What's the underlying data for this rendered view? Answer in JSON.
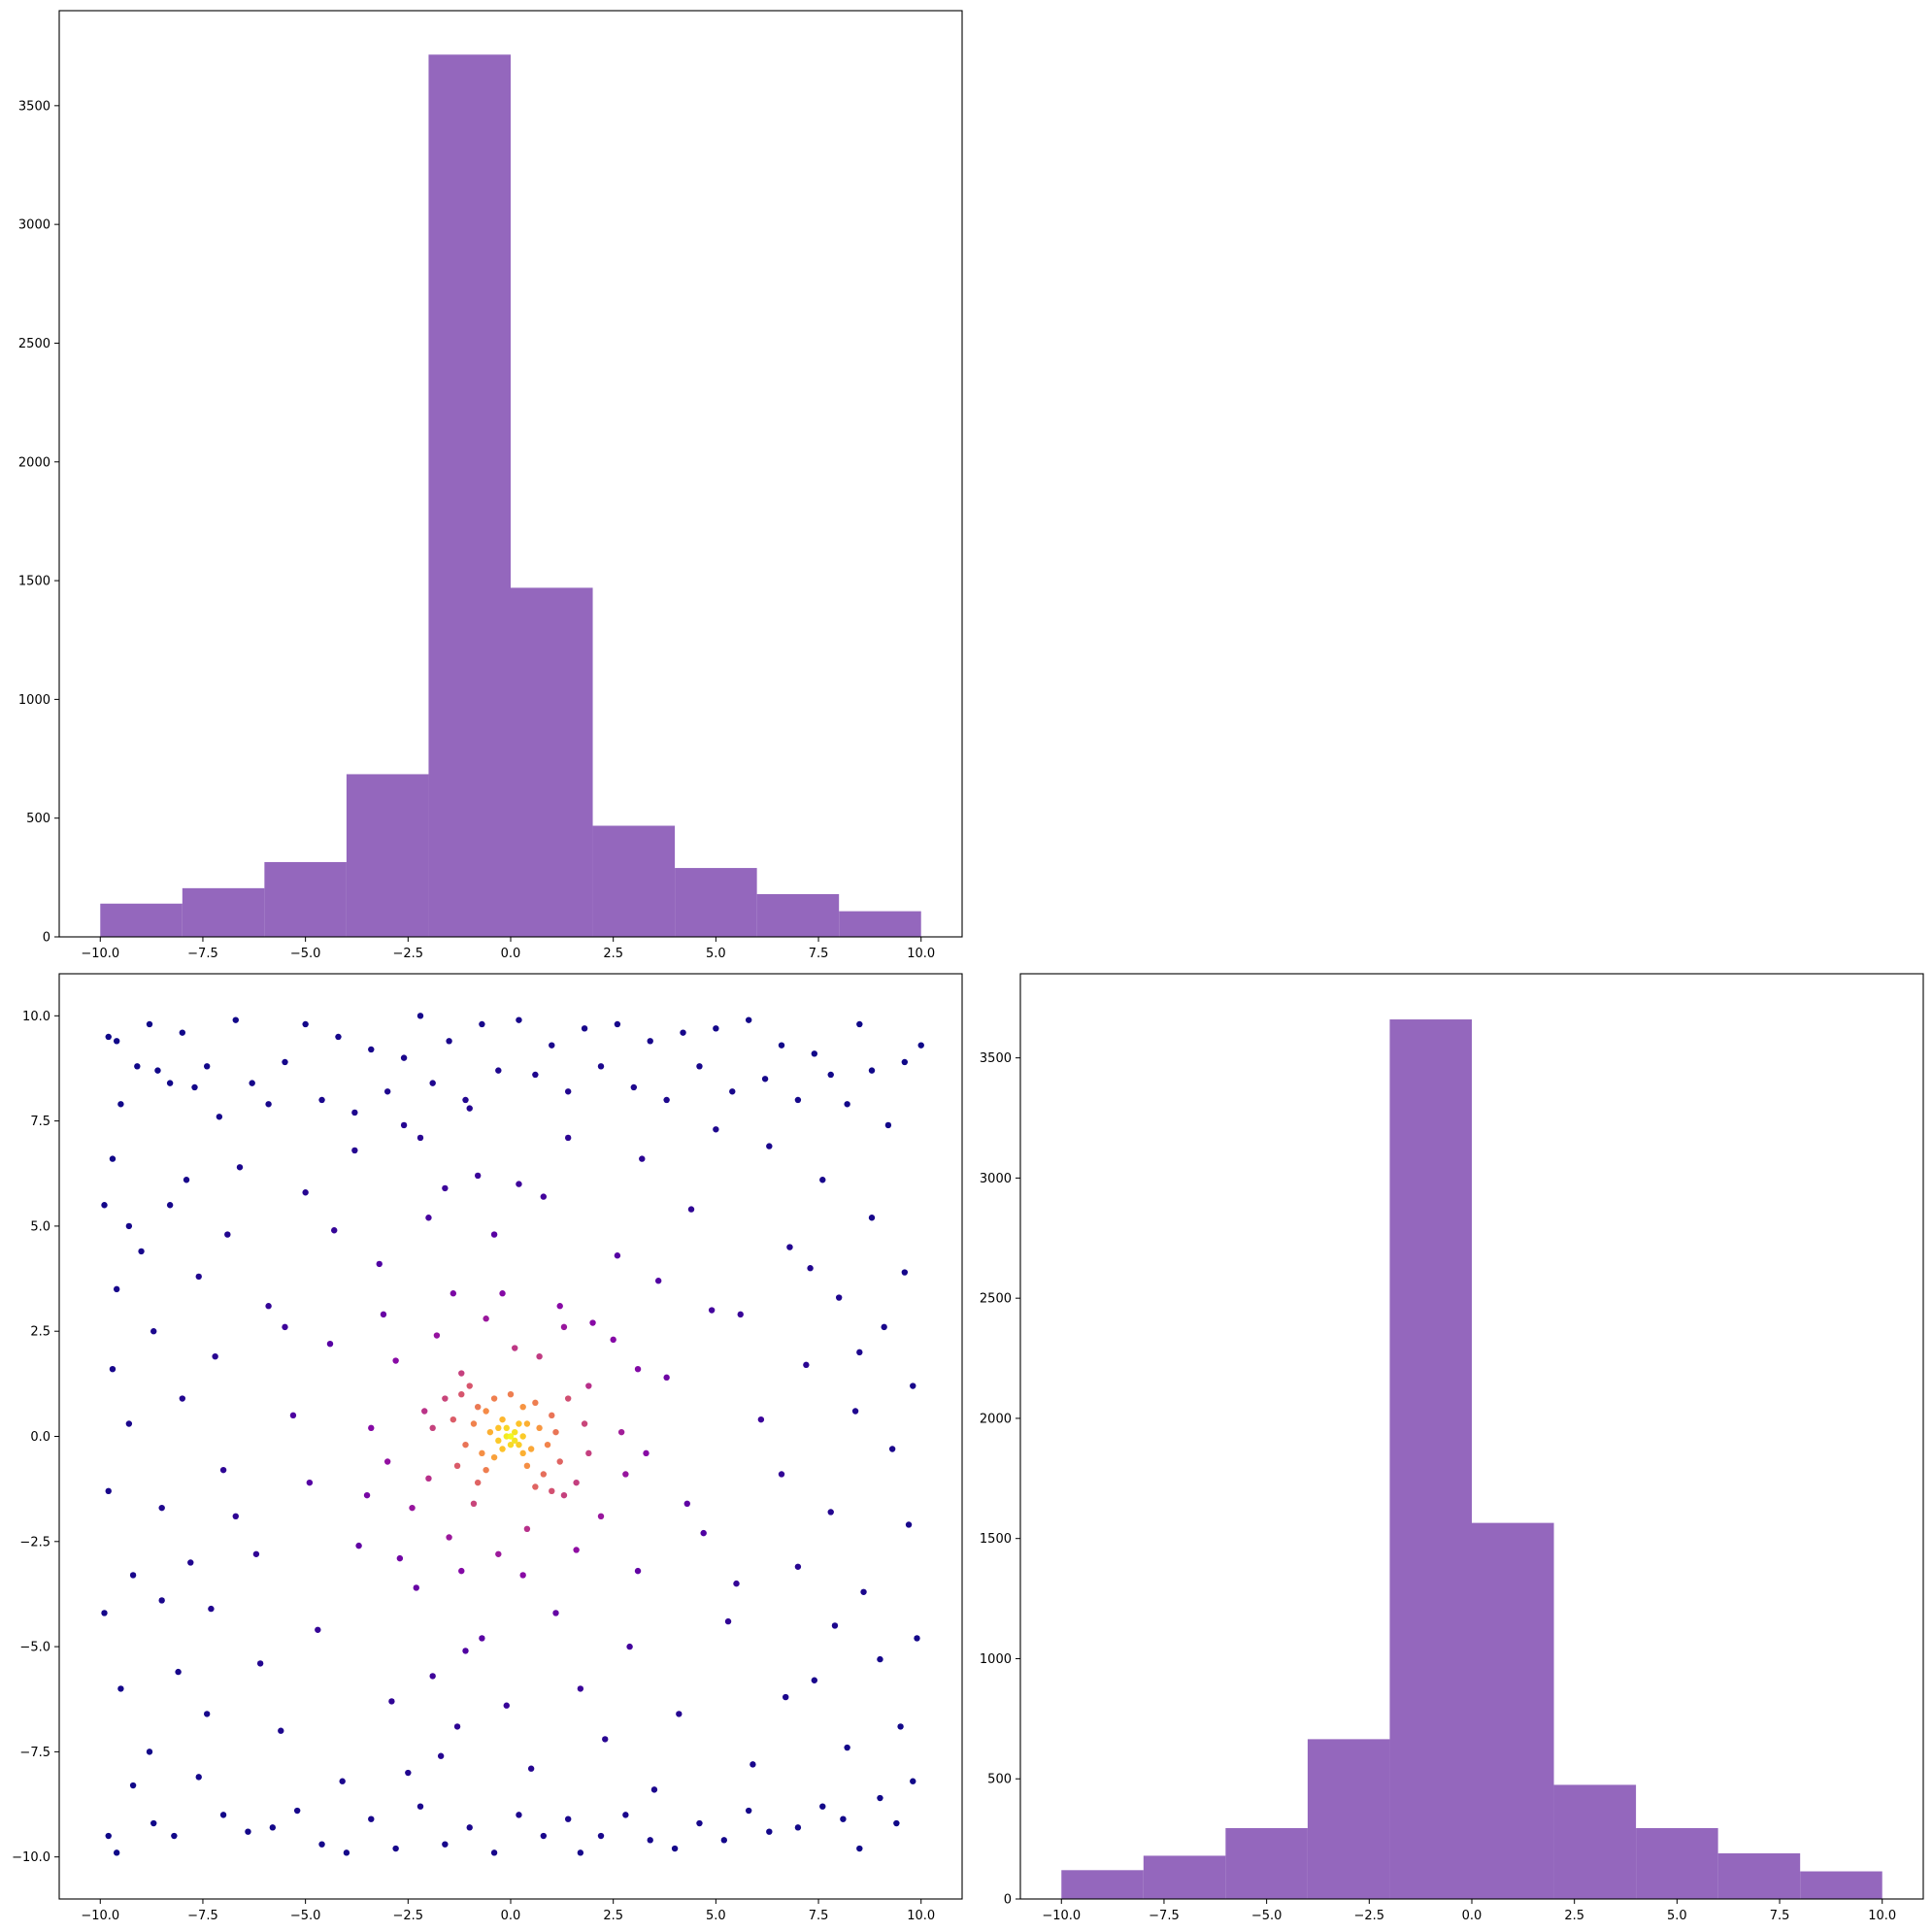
{
  "figure": {
    "background": "#ffffff",
    "bar_color": "#9467bd",
    "colormap": "plasma"
  },
  "chart_data": [
    {
      "type": "bar",
      "panel": "top-left",
      "bin_edges": [
        -10,
        -8,
        -6,
        -4,
        -2,
        0,
        2,
        4,
        6,
        8,
        10
      ],
      "values": [
        140,
        205,
        315,
        685,
        3715,
        1470,
        468,
        290,
        180,
        108
      ],
      "xlim": [
        -11,
        11
      ],
      "ylim": [
        0,
        3900
      ],
      "xticks": [
        -10.0,
        -7.5,
        -5.0,
        -2.5,
        0.0,
        2.5,
        5.0,
        7.5,
        10.0
      ],
      "xtick_labels": [
        "−10.0",
        "−7.5",
        "−5.0",
        "−2.5",
        "0.0",
        "2.5",
        "5.0",
        "7.5",
        "10.0"
      ],
      "yticks": [
        0,
        500,
        1000,
        1500,
        2000,
        2500,
        3000,
        3500
      ],
      "ytick_labels": [
        "0",
        "500",
        "1000",
        "1500",
        "2000",
        "2500",
        "3000",
        "3500"
      ],
      "color": "#9467bd",
      "grid": false
    },
    {
      "type": "scatter",
      "panel": "bottom-left",
      "xlim": [
        -11,
        11
      ],
      "ylim": [
        -11,
        11
      ],
      "xticks": [
        -10.0,
        -7.5,
        -5.0,
        -2.5,
        0.0,
        2.5,
        5.0,
        7.5,
        10.0
      ],
      "xtick_labels": [
        "−10.0",
        "−7.5",
        "−5.0",
        "−2.5",
        "0.0",
        "2.5",
        "5.0",
        "7.5",
        "10.0"
      ],
      "yticks": [
        -10.0,
        -7.5,
        -5.0,
        -2.5,
        0.0,
        2.5,
        5.0,
        7.5,
        10.0
      ],
      "ytick_labels": [
        "−10.0",
        "−7.5",
        "−5.0",
        "−2.5",
        "0.0",
        "2.5",
        "5.0",
        "7.5",
        "10.0"
      ],
      "point_color_scale": "plasma, by local point density (dark purple = sparse, yellow = dense)",
      "points": [
        [
          -9.9,
          5.5
        ],
        [
          -9.8,
          9.5
        ],
        [
          -9.7,
          6.6
        ],
        [
          -9.6,
          9.4
        ],
        [
          -9.5,
          7.9
        ],
        [
          -9.3,
          5.0
        ],
        [
          -9.1,
          8.8
        ],
        [
          -8.8,
          9.8
        ],
        [
          -8.6,
          8.7
        ],
        [
          -8.3,
          8.4
        ],
        [
          -8.0,
          9.6
        ],
        [
          -7.7,
          8.3
        ],
        [
          -7.4,
          8.8
        ],
        [
          -7.1,
          7.6
        ],
        [
          -6.7,
          9.9
        ],
        [
          -6.3,
          8.4
        ],
        [
          -5.9,
          7.9
        ],
        [
          -5.5,
          8.9
        ],
        [
          -5.0,
          9.8
        ],
        [
          -4.6,
          8.0
        ],
        [
          -4.2,
          9.5
        ],
        [
          -3.8,
          7.7
        ],
        [
          -3.4,
          9.2
        ],
        [
          -3.0,
          8.2
        ],
        [
          -2.6,
          9.0
        ],
        [
          -2.2,
          10.0
        ],
        [
          -1.9,
          8.4
        ],
        [
          -1.5,
          9.4
        ],
        [
          -1.1,
          8.0
        ],
        [
          -0.7,
          9.8
        ],
        [
          -0.3,
          8.7
        ],
        [
          0.2,
          9.9
        ],
        [
          0.6,
          8.6
        ],
        [
          1.0,
          9.3
        ],
        [
          1.4,
          8.2
        ],
        [
          1.8,
          9.7
        ],
        [
          2.2,
          8.8
        ],
        [
          2.6,
          9.8
        ],
        [
          3.0,
          8.3
        ],
        [
          3.4,
          9.4
        ],
        [
          3.8,
          8.0
        ],
        [
          4.2,
          9.6
        ],
        [
          4.6,
          8.8
        ],
        [
          5.0,
          9.7
        ],
        [
          5.4,
          8.2
        ],
        [
          5.8,
          9.9
        ],
        [
          6.2,
          8.5
        ],
        [
          6.6,
          9.3
        ],
        [
          7.0,
          8.0
        ],
        [
          7.4,
          9.1
        ],
        [
          7.8,
          8.6
        ],
        [
          8.2,
          7.9
        ],
        [
          8.5,
          9.8
        ],
        [
          8.8,
          8.7
        ],
        [
          9.2,
          7.4
        ],
        [
          9.6,
          8.9
        ],
        [
          10.0,
          9.3
        ],
        [
          -9.8,
          -9.5
        ],
        [
          -9.6,
          -9.9
        ],
        [
          -9.2,
          -8.3
        ],
        [
          -8.7,
          -9.2
        ],
        [
          -8.2,
          -9.5
        ],
        [
          -7.6,
          -8.1
        ],
        [
          -7.0,
          -9.0
        ],
        [
          -6.4,
          -9.4
        ],
        [
          -5.8,
          -9.3
        ],
        [
          -5.2,
          -8.9
        ],
        [
          -4.6,
          -9.7
        ],
        [
          -4.0,
          -9.9
        ],
        [
          -3.4,
          -9.1
        ],
        [
          -2.8,
          -9.8
        ],
        [
          -2.2,
          -8.8
        ],
        [
          -1.6,
          -9.7
        ],
        [
          -1.0,
          -9.3
        ],
        [
          -0.4,
          -9.9
        ],
        [
          0.2,
          -9.0
        ],
        [
          0.8,
          -9.5
        ],
        [
          1.4,
          -9.1
        ],
        [
          1.7,
          -9.9
        ],
        [
          2.2,
          -9.5
        ],
        [
          2.8,
          -9.0
        ],
        [
          3.4,
          -9.6
        ],
        [
          4.0,
          -9.8
        ],
        [
          4.6,
          -9.2
        ],
        [
          5.2,
          -9.6
        ],
        [
          5.8,
          -8.9
        ],
        [
          6.3,
          -9.4
        ],
        [
          7.0,
          -9.3
        ],
        [
          7.6,
          -8.8
        ],
        [
          8.1,
          -9.1
        ],
        [
          8.5,
          -9.8
        ],
        [
          9.0,
          -8.6
        ],
        [
          9.4,
          -9.2
        ],
        [
          9.8,
          -8.2
        ],
        [
          -9.9,
          -4.2
        ],
        [
          -9.8,
          -1.3
        ],
        [
          -9.7,
          1.6
        ],
        [
          -9.6,
          3.5
        ],
        [
          -9.5,
          -6.0
        ],
        [
          -9.3,
          0.3
        ],
        [
          -9.2,
          -3.3
        ],
        [
          -9.0,
          4.4
        ],
        [
          -8.8,
          -7.5
        ],
        [
          -8.7,
          2.5
        ],
        [
          -8.5,
          -1.7
        ],
        [
          -8.3,
          5.5
        ],
        [
          -8.1,
          -5.6
        ],
        [
          -8.0,
          0.9
        ],
        [
          -7.8,
          -3.0
        ],
        [
          -7.6,
          3.8
        ],
        [
          -7.4,
          -6.6
        ],
        [
          -7.2,
          1.9
        ],
        [
          -7.0,
          -0.8
        ],
        [
          -6.9,
          4.8
        ],
        [
          9.9,
          -4.8
        ],
        [
          9.8,
          1.2
        ],
        [
          9.7,
          -2.1
        ],
        [
          9.6,
          3.9
        ],
        [
          9.5,
          -6.9
        ],
        [
          9.3,
          -0.3
        ],
        [
          9.1,
          2.6
        ],
        [
          9.0,
          -5.3
        ],
        [
          8.8,
          5.2
        ],
        [
          8.6,
          -3.7
        ],
        [
          8.4,
          0.6
        ],
        [
          8.2,
          -7.4
        ],
        [
          8.0,
          3.3
        ],
        [
          7.8,
          -1.8
        ],
        [
          7.6,
          6.1
        ],
        [
          7.4,
          -5.8
        ],
        [
          7.2,
          1.7
        ],
        [
          7.0,
          -3.1
        ],
        [
          6.8,
          4.5
        ],
        [
          6.6,
          -0.9
        ],
        [
          -6.6,
          6.4
        ],
        [
          -6.2,
          -2.8
        ],
        [
          -5.9,
          3.1
        ],
        [
          -5.6,
          -7.0
        ],
        [
          -5.3,
          0.5
        ],
        [
          -5.0,
          5.8
        ],
        [
          -4.7,
          -4.6
        ],
        [
          -4.4,
          2.2
        ],
        [
          -4.1,
          -8.2
        ],
        [
          -3.8,
          6.8
        ],
        [
          -3.5,
          -1.4
        ],
        [
          -3.2,
          4.1
        ],
        [
          -2.9,
          -6.3
        ],
        [
          -2.6,
          7.4
        ],
        [
          -2.3,
          -3.6
        ],
        [
          -2.0,
          5.2
        ],
        [
          -1.7,
          -7.6
        ],
        [
          -1.4,
          3.4
        ],
        [
          -1.1,
          -5.1
        ],
        [
          -0.8,
          6.2
        ],
        [
          6.3,
          6.9
        ],
        [
          5.9,
          -7.8
        ],
        [
          5.6,
          2.9
        ],
        [
          5.3,
          -4.4
        ],
        [
          5.0,
          7.3
        ],
        [
          4.7,
          -2.3
        ],
        [
          4.4,
          5.4
        ],
        [
          4.1,
          -6.6
        ],
        [
          3.8,
          1.4
        ],
        [
          3.5,
          -8.4
        ],
        [
          3.2,
          6.6
        ],
        [
          2.9,
          -5.0
        ],
        [
          2.6,
          4.3
        ],
        [
          2.3,
          -7.2
        ],
        [
          2.0,
          2.7
        ],
        [
          1.7,
          -6.0
        ],
        [
          1.4,
          7.1
        ],
        [
          1.1,
          -4.2
        ],
        [
          0.8,
          5.7
        ],
        [
          0.5,
          -7.9
        ],
        [
          0.2,
          6.0
        ],
        [
          -0.1,
          -6.4
        ],
        [
          -0.4,
          4.8
        ],
        [
          -0.7,
          -4.8
        ],
        [
          -1.0,
          7.8
        ],
        [
          -1.3,
          -6.9
        ],
        [
          -1.6,
          5.9
        ],
        [
          -1.9,
          -5.7
        ],
        [
          -2.2,
          7.1
        ],
        [
          -2.5,
          -8.0
        ],
        [
          -3.1,
          2.9
        ],
        [
          -3.7,
          -2.6
        ],
        [
          -4.3,
          4.9
        ],
        [
          -4.9,
          -1.1
        ],
        [
          -5.5,
          2.6
        ],
        [
          -6.1,
          -5.4
        ],
        [
          -6.7,
          -1.9
        ],
        [
          -7.3,
          -4.1
        ],
        [
          -7.9,
          6.1
        ],
        [
          -8.5,
          -3.9
        ],
        [
          3.1,
          -3.2
        ],
        [
          3.6,
          3.7
        ],
        [
          4.3,
          -1.6
        ],
        [
          4.9,
          3.0
        ],
        [
          5.5,
          -3.5
        ],
        [
          6.1,
          0.4
        ],
        [
          6.7,
          -6.2
        ],
        [
          7.3,
          4.0
        ],
        [
          7.9,
          -4.5
        ],
        [
          8.5,
          2.0
        ],
        [
          -2.8,
          1.8
        ],
        [
          -2.4,
          -1.7
        ],
        [
          -2.1,
          0.6
        ],
        [
          -1.8,
          2.4
        ],
        [
          -1.5,
          -2.4
        ],
        [
          -1.2,
          1.5
        ],
        [
          -0.9,
          -1.6
        ],
        [
          -0.6,
          2.8
        ],
        [
          -0.3,
          -2.8
        ],
        [
          0.1,
          2.1
        ],
        [
          0.4,
          -2.2
        ],
        [
          0.7,
          1.9
        ],
        [
          1.0,
          -1.3
        ],
        [
          1.3,
          2.6
        ],
        [
          1.6,
          -2.7
        ],
        [
          1.9,
          1.2
        ],
        [
          2.2,
          -1.9
        ],
        [
          2.5,
          2.3
        ],
        [
          2.8,
          -0.9
        ],
        [
          3.1,
          1.6
        ],
        [
          -3.4,
          0.2
        ],
        [
          -3.0,
          -0.6
        ],
        [
          -2.7,
          -2.9
        ],
        [
          2.7,
          0.1
        ],
        [
          3.3,
          -0.4
        ],
        [
          -0.2,
          3.4
        ],
        [
          0.3,
          -3.3
        ],
        [
          1.2,
          3.1
        ],
        [
          -1.2,
          -3.2
        ],
        [
          -2.0,
          -1.0
        ],
        [
          -1.6,
          0.9
        ],
        [
          -1.3,
          -0.7
        ],
        [
          -1.0,
          1.2
        ],
        [
          -0.8,
          -1.1
        ],
        [
          -0.6,
          0.6
        ],
        [
          -0.4,
          -0.5
        ],
        [
          -0.2,
          0.4
        ],
        [
          0.0,
          -0.2
        ],
        [
          0.2,
          0.3
        ],
        [
          0.4,
          -0.7
        ],
        [
          0.6,
          0.8
        ],
        [
          0.8,
          -0.9
        ],
        [
          1.0,
          0.5
        ],
        [
          1.2,
          -0.6
        ],
        [
          1.4,
          0.9
        ],
        [
          1.6,
          -1.1
        ],
        [
          1.8,
          0.3
        ],
        [
          -1.9,
          0.2
        ],
        [
          -1.4,
          0.4
        ],
        [
          1.9,
          -0.4
        ],
        [
          -1.1,
          -0.2
        ],
        [
          -0.9,
          0.3
        ],
        [
          -0.7,
          -0.4
        ],
        [
          -0.5,
          0.1
        ],
        [
          -0.3,
          -0.1
        ],
        [
          -0.1,
          0.2
        ],
        [
          0.1,
          -0.1
        ],
        [
          0.3,
          0.0
        ],
        [
          0.5,
          -0.3
        ],
        [
          0.7,
          0.2
        ],
        [
          0.9,
          -0.2
        ],
        [
          1.1,
          0.1
        ],
        [
          -0.6,
          -0.8
        ],
        [
          0.6,
          -1.2
        ],
        [
          -0.4,
          0.9
        ],
        [
          0.3,
          0.7
        ],
        [
          -0.8,
          0.7
        ],
        [
          1.3,
          -1.4
        ],
        [
          -1.2,
          1.0
        ],
        [
          0.0,
          1.0
        ],
        [
          -0.2,
          -0.3
        ],
        [
          0.1,
          0.1
        ],
        [
          -0.1,
          0.0
        ],
        [
          0.2,
          -0.2
        ],
        [
          0.0,
          0.0
        ],
        [
          -0.3,
          0.2
        ],
        [
          0.4,
          0.3
        ],
        [
          0.3,
          -0.4
        ]
      ]
    },
    {
      "type": "bar",
      "panel": "bottom-right",
      "bin_edges": [
        -10,
        -8,
        -6,
        -4,
        -2,
        0,
        2,
        4,
        6,
        8,
        10
      ],
      "values": [
        120,
        180,
        295,
        665,
        3660,
        1565,
        475,
        295,
        190,
        115
      ],
      "xlim": [
        -11,
        11
      ],
      "ylim": [
        0,
        3850
      ],
      "xticks": [
        -10.0,
        -7.5,
        -5.0,
        -2.5,
        0.0,
        2.5,
        5.0,
        7.5,
        10.0
      ],
      "xtick_labels": [
        "−10.0",
        "−7.5",
        "−5.0",
        "−2.5",
        "0.0",
        "2.5",
        "5.0",
        "7.5",
        "10.0"
      ],
      "yticks": [
        0,
        500,
        1000,
        1500,
        2000,
        2500,
        3000,
        3500
      ],
      "ytick_labels": [
        "0",
        "500",
        "1000",
        "1500",
        "2000",
        "2500",
        "3000",
        "3500"
      ],
      "color": "#9467bd",
      "grid": false
    }
  ]
}
